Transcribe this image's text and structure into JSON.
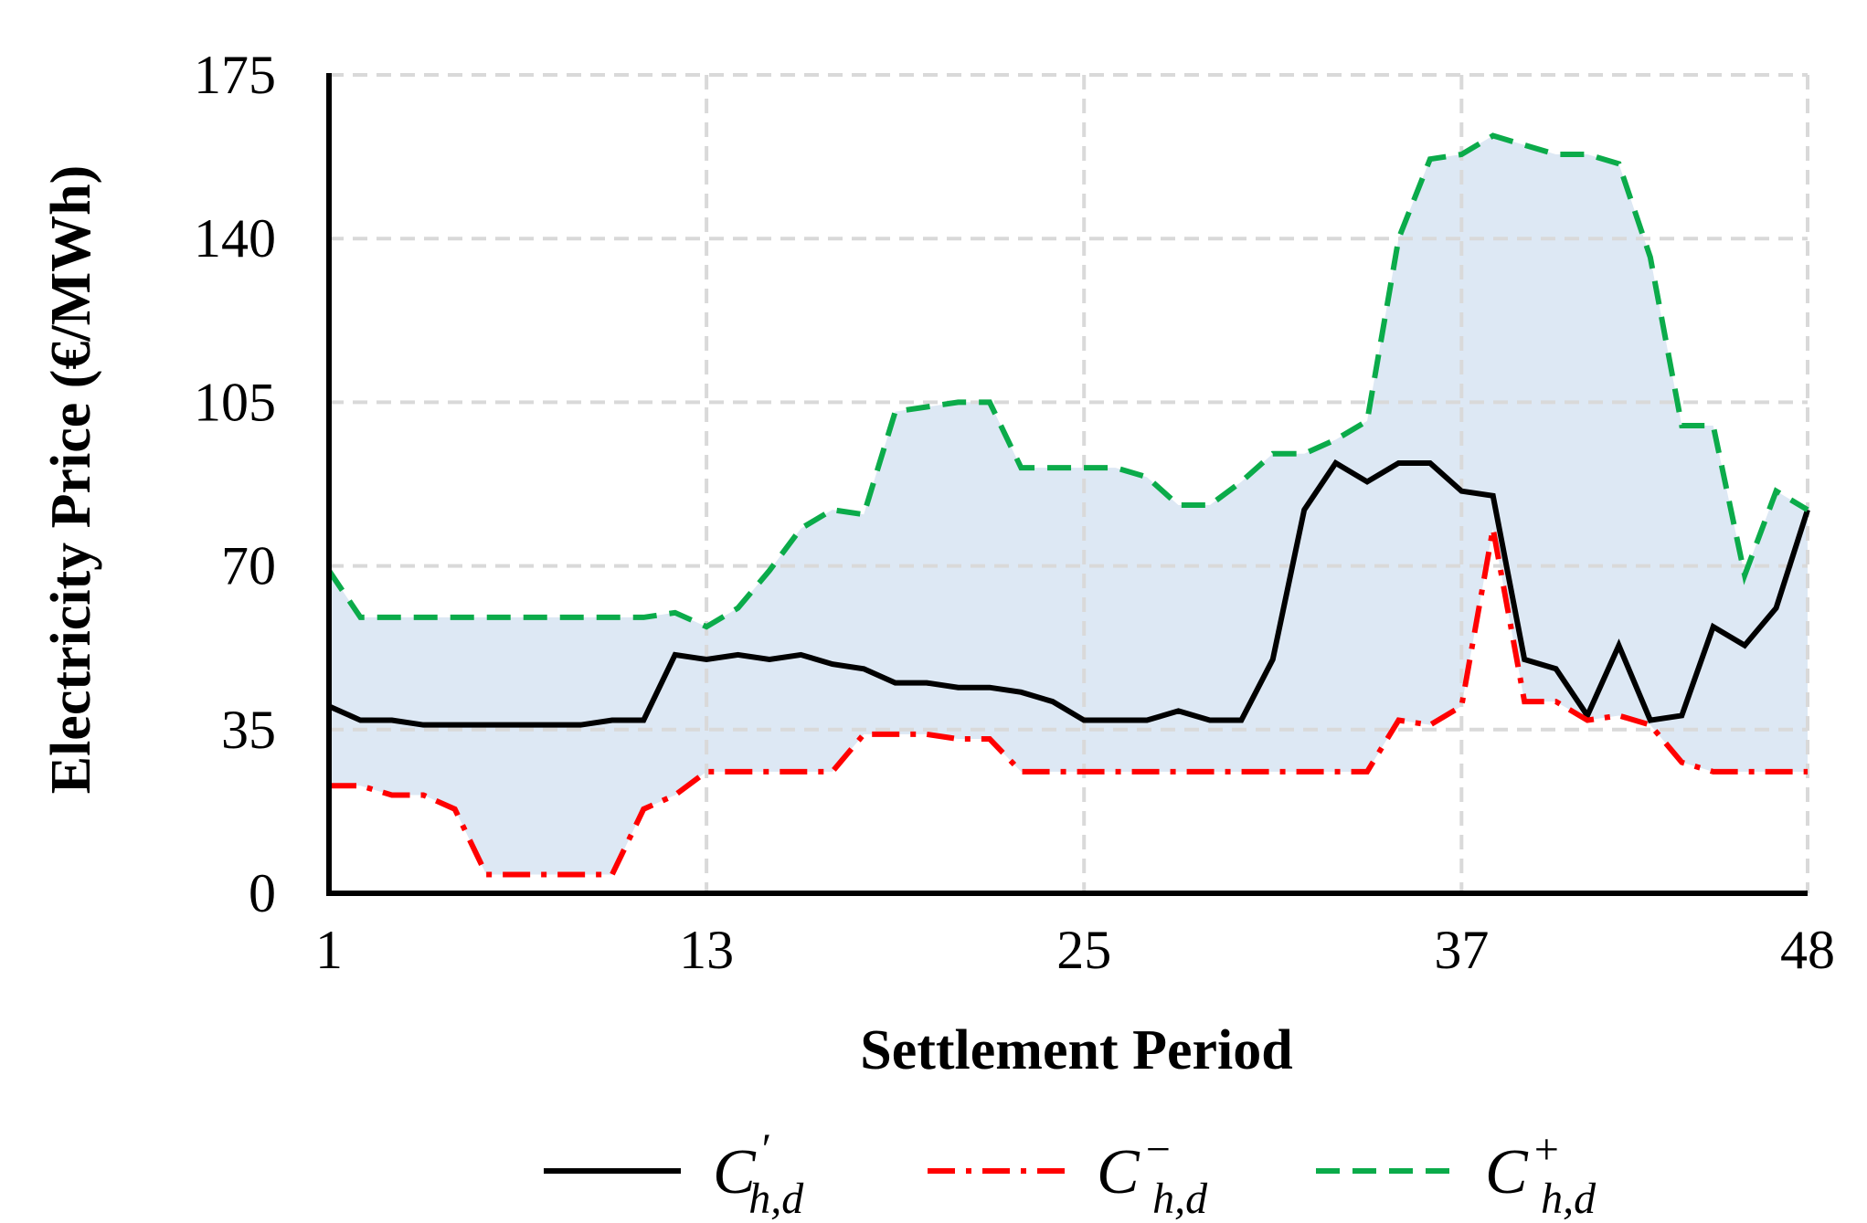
{
  "chart_data": {
    "type": "line",
    "title": "",
    "xlabel": "Settlement Period",
    "ylabel": "Electricity Price (€/MWh)",
    "xlim": [
      1,
      48
    ],
    "ylim": [
      0,
      175
    ],
    "xticks": [
      1,
      13,
      25,
      37,
      48
    ],
    "yticks": [
      0,
      35,
      70,
      105,
      140,
      175
    ],
    "grid": true,
    "legend_position": "bottom",
    "band": {
      "lower_series": "C-",
      "upper_series": "C+",
      "color": "#dde8f4"
    },
    "x": [
      1,
      2,
      3,
      4,
      5,
      6,
      7,
      8,
      9,
      10,
      11,
      12,
      13,
      14,
      15,
      16,
      17,
      18,
      19,
      20,
      21,
      22,
      23,
      24,
      25,
      26,
      27,
      28,
      29,
      30,
      31,
      32,
      33,
      34,
      35,
      36,
      37,
      38,
      39,
      40,
      41,
      42,
      43,
      44,
      45,
      46,
      47,
      48
    ],
    "series": [
      {
        "name": "C'",
        "legend_main": "C",
        "legend_sup": "′",
        "legend_sub": "h,d",
        "color": "#000000",
        "style": "solid",
        "values": [
          40,
          37,
          37,
          36,
          36,
          36,
          36,
          36,
          36,
          37,
          37,
          51,
          50,
          51,
          50,
          51,
          49,
          48,
          45,
          45,
          44,
          44,
          43,
          41,
          37,
          37,
          37,
          39,
          37,
          37,
          50,
          82,
          92,
          88,
          92,
          92,
          86,
          85,
          50,
          48,
          38,
          53,
          37,
          38,
          57,
          53,
          61,
          82
        ]
      },
      {
        "name": "C-",
        "legend_main": "C",
        "legend_sup": "−",
        "legend_sub": "h,d",
        "color": "#ff0000",
        "style": "dashdot",
        "values": [
          23,
          23,
          21,
          21,
          18,
          4,
          4,
          4,
          4,
          4,
          18,
          21,
          26,
          26,
          26,
          26,
          26,
          34,
          34,
          34,
          33,
          33,
          26,
          26,
          26,
          26,
          26,
          26,
          26,
          26,
          26,
          26,
          26,
          26,
          37,
          36,
          40,
          78,
          41,
          41,
          37,
          38,
          36,
          28,
          26,
          26,
          26,
          26
        ]
      },
      {
        "name": "C+",
        "legend_main": "C",
        "legend_sup": "+",
        "legend_sub": "h,d",
        "color": "#0bab4a",
        "style": "dashed",
        "values": [
          69,
          59,
          59,
          59,
          59,
          59,
          59,
          59,
          59,
          59,
          59,
          60,
          57,
          61,
          69,
          78,
          82,
          81,
          103,
          104,
          105,
          105,
          91,
          91,
          91,
          91,
          89,
          83,
          83,
          88,
          94,
          94,
          97,
          101,
          140,
          157,
          158,
          162,
          160,
          158,
          158,
          156,
          136,
          100,
          100,
          68,
          86,
          82
        ]
      }
    ]
  }
}
